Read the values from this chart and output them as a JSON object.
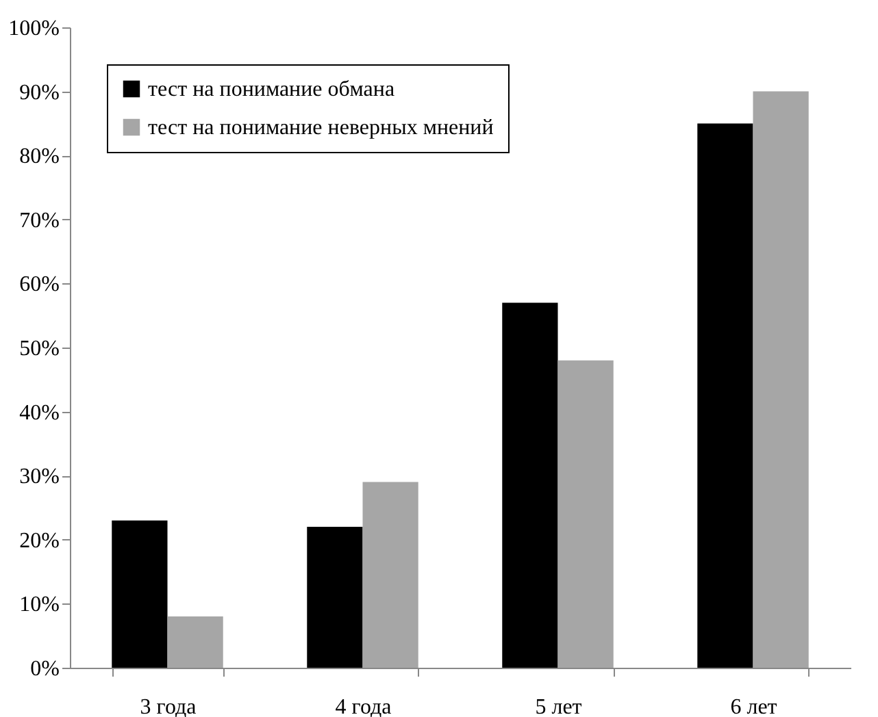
{
  "chart_data": {
    "type": "bar",
    "categories": [
      "3 года",
      "4 года",
      "5 лет",
      "6 лет"
    ],
    "series": [
      {
        "name": "тест на понимание обмана",
        "color": "#000000",
        "values": [
          23,
          22,
          57,
          85
        ]
      },
      {
        "name": "тест на понимание неверных мнений",
        "color": "#a6a6a6",
        "values": [
          8,
          29,
          48,
          90
        ]
      }
    ],
    "ylim": [
      0,
      100
    ],
    "yticks": [
      {
        "value": 0,
        "label": "0%"
      },
      {
        "value": 10,
        "label": "10%"
      },
      {
        "value": 20,
        "label": "20%"
      },
      {
        "value": 30,
        "label": "30%"
      },
      {
        "value": 40,
        "label": "40%"
      },
      {
        "value": 50,
        "label": "50%"
      },
      {
        "value": 60,
        "label": "60%"
      },
      {
        "value": 70,
        "label": "70%"
      },
      {
        "value": 80,
        "label": "80%"
      },
      {
        "value": 90,
        "label": "90%"
      },
      {
        "value": 100,
        "label": "100%"
      }
    ],
    "grid": false,
    "legend": "top left"
  }
}
